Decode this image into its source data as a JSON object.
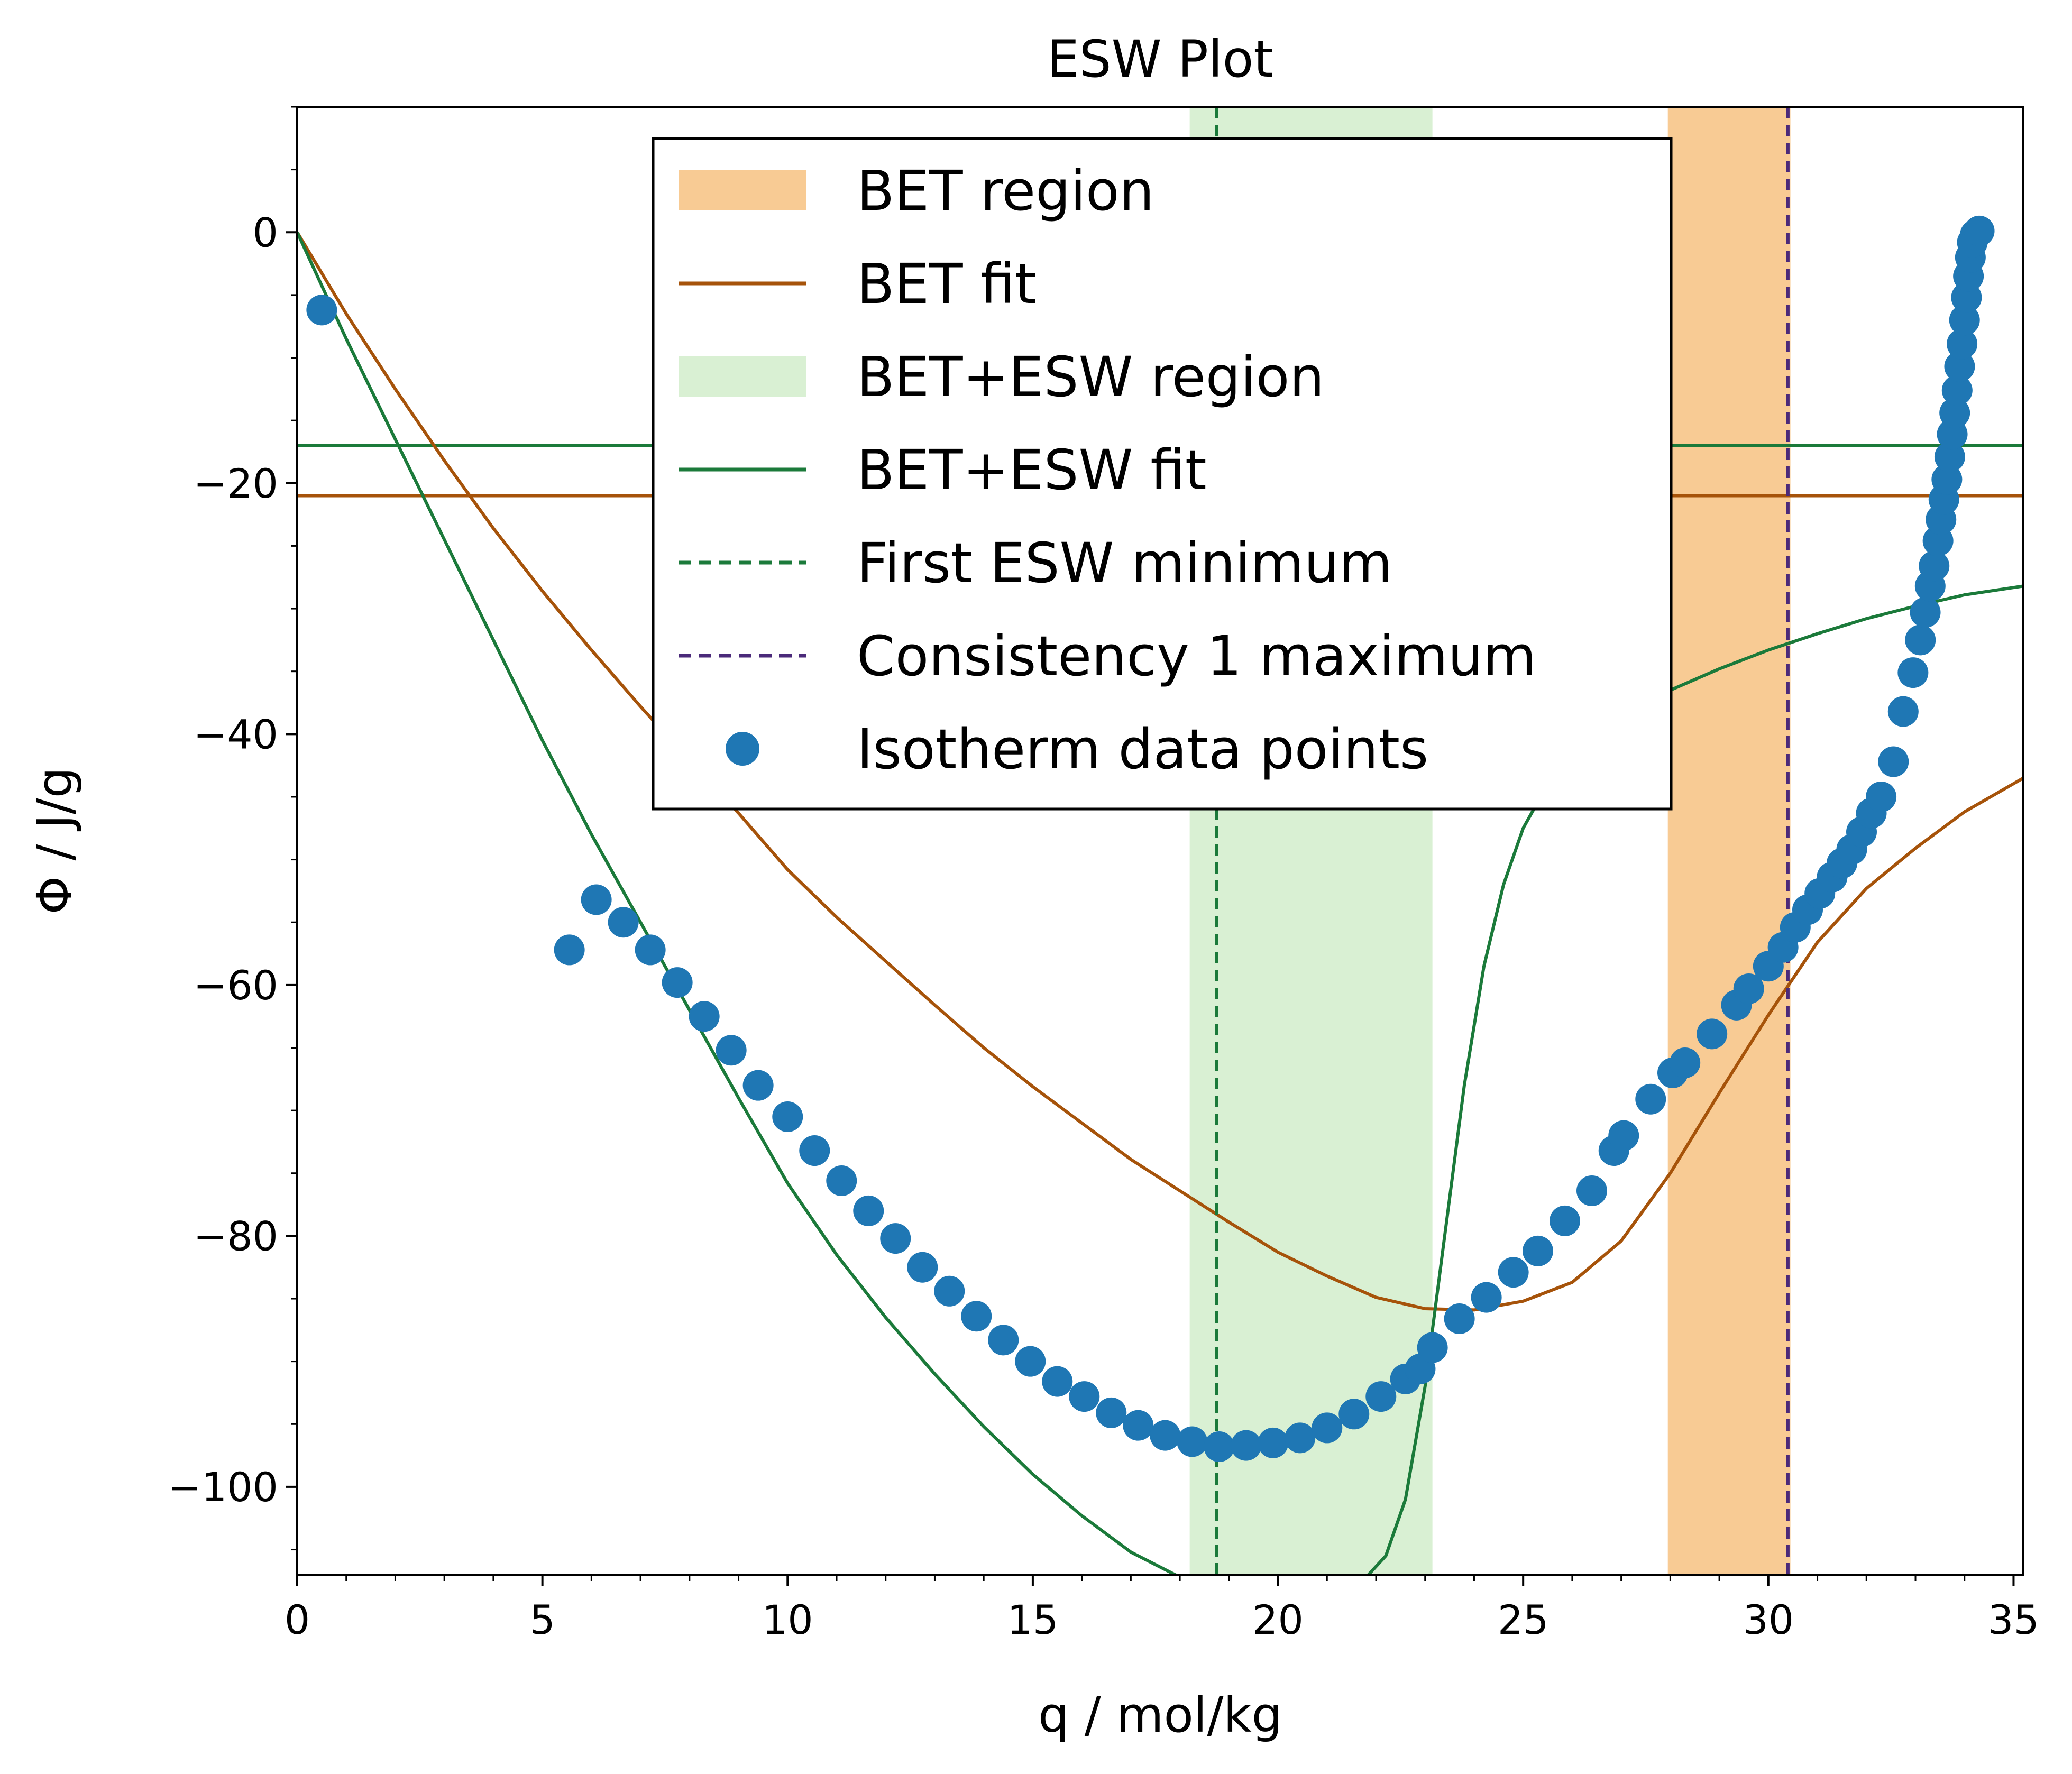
{
  "chart_data": {
    "type": "scatter",
    "title": "ESW Plot",
    "xlabel": "q / mol/kg",
    "ylabel": "Φ / J/g",
    "xlim": [
      0,
      35.2
    ],
    "ylim": [
      -107,
      10
    ],
    "xticks": [
      0,
      5,
      10,
      15,
      20,
      25,
      30,
      35
    ],
    "yticks": [
      0,
      -20,
      -40,
      -60,
      -80,
      -100
    ],
    "xtick_labels": [
      "0",
      "5",
      "10",
      "15",
      "20",
      "25",
      "30",
      "35"
    ],
    "ytick_labels": [
      "0",
      "−20",
      "−40",
      "−60",
      "−80",
      "−100"
    ],
    "grid": false,
    "legend_position": "top-center",
    "colors": {
      "bet_region": "#f8cb94",
      "bet_fit": "#a6530a",
      "esw_region": "#d9f0d3",
      "esw_fit": "#1b7a3a",
      "esw_min": "#1b7a3a",
      "cons_max": "#4b2a7a",
      "points": "#1f77b4"
    },
    "regions": [
      {
        "name": "BET region",
        "x_range": [
          27.95,
          30.45
        ],
        "color": "#f8cb94"
      },
      {
        "name": "BET+ESW region",
        "x_range": [
          18.2,
          23.15
        ],
        "color": "#d9f0d3"
      }
    ],
    "vlines": [
      {
        "name": "First ESW minimum",
        "x": 18.75,
        "color": "#1b7a3a",
        "style": "dashed"
      },
      {
        "name": "Consistency 1 maximum",
        "x": 30.4,
        "color": "#4b2a7a",
        "style": "dashed"
      }
    ],
    "hlines": [
      {
        "series": "BET+ESW fit",
        "y": -17,
        "color": "#1b7a3a"
      },
      {
        "series": "BET fit",
        "y": -21,
        "color": "#a6530a"
      }
    ],
    "series": [
      {
        "name": "BET fit",
        "kind": "line",
        "color": "#a6530a",
        "points": [
          [
            0,
            0
          ],
          [
            1,
            -6.5
          ],
          [
            2,
            -12.5
          ],
          [
            3,
            -18.2
          ],
          [
            4,
            -23.6
          ],
          [
            5,
            -28.6
          ],
          [
            6,
            -33.3
          ],
          [
            7,
            -37.8
          ],
          [
            8,
            -42.1
          ],
          [
            9,
            -46.3
          ],
          [
            10,
            -50.8
          ],
          [
            11,
            -54.6
          ],
          [
            12,
            -58.1
          ],
          [
            13,
            -61.6
          ],
          [
            14,
            -65.0
          ],
          [
            15,
            -68.1
          ],
          [
            16,
            -71.0
          ],
          [
            17,
            -73.9
          ],
          [
            18,
            -76.4
          ],
          [
            19,
            -78.9
          ],
          [
            20,
            -81.3
          ],
          [
            21,
            -83.2
          ],
          [
            22,
            -84.9
          ],
          [
            23,
            -85.8
          ],
          [
            24,
            -85.9
          ],
          [
            25,
            -85.2
          ],
          [
            26,
            -83.7
          ],
          [
            27,
            -80.4
          ],
          [
            28,
            -75.0
          ],
          [
            29,
            -68.6
          ],
          [
            30,
            -62.4
          ],
          [
            31,
            -56.6
          ],
          [
            32,
            -52.3
          ],
          [
            33,
            -49.1
          ],
          [
            34,
            -46.2
          ],
          [
            35.2,
            -43.5
          ]
        ]
      },
      {
        "name": "BET+ESW fit",
        "kind": "line",
        "color": "#1b7a3a",
        "points": [
          [
            0,
            0
          ],
          [
            1,
            -8.5
          ],
          [
            2,
            -16.5
          ],
          [
            3,
            -24.5
          ],
          [
            4,
            -32.5
          ],
          [
            5,
            -40.5
          ],
          [
            6,
            -48.0
          ],
          [
            7,
            -55.0
          ],
          [
            8,
            -62.0
          ],
          [
            9,
            -69.0
          ],
          [
            10,
            -75.8
          ],
          [
            11,
            -81.5
          ],
          [
            12,
            -86.5
          ],
          [
            13,
            -91.0
          ],
          [
            14,
            -95.2
          ],
          [
            15,
            -99.0
          ],
          [
            16,
            -102.3
          ],
          [
            17,
            -105.2
          ],
          [
            18,
            -107.2
          ],
          [
            21.8,
            -107.2
          ],
          [
            22.2,
            -105.5
          ],
          [
            22.6,
            -101.0
          ],
          [
            23.0,
            -92.0
          ],
          [
            23.4,
            -80.0
          ],
          [
            23.8,
            -68.0
          ],
          [
            24.2,
            -58.5
          ],
          [
            24.6,
            -52.0
          ],
          [
            25,
            -47.5
          ],
          [
            25.5,
            -44.0
          ],
          [
            26,
            -41.5
          ],
          [
            27,
            -38.5
          ],
          [
            28,
            -36.5
          ],
          [
            29,
            -34.8
          ],
          [
            30,
            -33.3
          ],
          [
            31,
            -32.0
          ],
          [
            32,
            -30.8
          ],
          [
            33,
            -29.8
          ],
          [
            34,
            -28.9
          ],
          [
            35.2,
            -28.2
          ]
        ]
      },
      {
        "name": "Isotherm data points",
        "kind": "scatter",
        "color": "#1f77b4",
        "points": [
          [
            0.5,
            -6.2
          ],
          [
            5.55,
            -57.2
          ],
          [
            6.1,
            -53.2
          ],
          [
            6.65,
            -55.0
          ],
          [
            7.2,
            -57.2
          ],
          [
            7.75,
            -59.8
          ],
          [
            8.3,
            -62.5
          ],
          [
            8.85,
            -65.2
          ],
          [
            9.4,
            -68.0
          ],
          [
            10.0,
            -70.5
          ],
          [
            10.55,
            -73.2
          ],
          [
            11.1,
            -75.6
          ],
          [
            11.65,
            -78.0
          ],
          [
            12.2,
            -80.2
          ],
          [
            12.75,
            -82.5
          ],
          [
            13.3,
            -84.4
          ],
          [
            13.85,
            -86.4
          ],
          [
            14.4,
            -88.3
          ],
          [
            14.95,
            -90.0
          ],
          [
            15.5,
            -91.6
          ],
          [
            16.05,
            -92.8
          ],
          [
            16.6,
            -94.1
          ],
          [
            17.15,
            -95.1
          ],
          [
            17.7,
            -95.9
          ],
          [
            18.25,
            -96.4
          ],
          [
            18.8,
            -96.8
          ],
          [
            19.35,
            -96.7
          ],
          [
            19.9,
            -96.5
          ],
          [
            20.45,
            -96.1
          ],
          [
            21.0,
            -95.3
          ],
          [
            21.55,
            -94.2
          ],
          [
            22.1,
            -92.8
          ],
          [
            22.6,
            -91.4
          ],
          [
            22.9,
            -90.6
          ],
          [
            23.15,
            -88.9
          ],
          [
            23.7,
            -86.6
          ],
          [
            24.25,
            -84.9
          ],
          [
            24.8,
            -82.9
          ],
          [
            25.3,
            -81.2
          ],
          [
            25.85,
            -78.8
          ],
          [
            26.4,
            -76.4
          ],
          [
            26.85,
            -73.2
          ],
          [
            27.05,
            -72.0
          ],
          [
            27.6,
            -69.1
          ],
          [
            28.05,
            -67.0
          ],
          [
            28.3,
            -66.2
          ],
          [
            28.85,
            -63.9
          ],
          [
            29.35,
            -61.6
          ],
          [
            29.6,
            -60.3
          ],
          [
            30.0,
            -58.5
          ],
          [
            30.3,
            -57.0
          ],
          [
            30.55,
            -55.4
          ],
          [
            30.8,
            -54.0
          ],
          [
            31.05,
            -52.7
          ],
          [
            31.3,
            -51.4
          ],
          [
            31.5,
            -50.3
          ],
          [
            31.7,
            -49.2
          ],
          [
            31.9,
            -47.8
          ],
          [
            32.1,
            -46.3
          ],
          [
            32.3,
            -45.0
          ],
          [
            32.55,
            -42.2
          ],
          [
            32.75,
            -38.2
          ],
          [
            32.95,
            -35.1
          ],
          [
            33.1,
            -32.5
          ],
          [
            33.2,
            -30.3
          ],
          [
            33.3,
            -28.2
          ],
          [
            33.38,
            -26.6
          ],
          [
            33.46,
            -24.6
          ],
          [
            33.52,
            -22.9
          ],
          [
            33.58,
            -21.3
          ],
          [
            33.64,
            -19.7
          ],
          [
            33.7,
            -17.9
          ],
          [
            33.75,
            -16.1
          ],
          [
            33.8,
            -14.4
          ],
          [
            33.85,
            -12.6
          ],
          [
            33.9,
            -10.7
          ],
          [
            33.95,
            -8.9
          ],
          [
            34.0,
            -7.0
          ],
          [
            34.04,
            -5.2
          ],
          [
            34.08,
            -3.5
          ],
          [
            34.12,
            -2.0
          ],
          [
            34.16,
            -0.8
          ],
          [
            34.22,
            -0.2
          ],
          [
            34.3,
            0.1
          ]
        ]
      }
    ],
    "legend": [
      {
        "label": "BET region",
        "marker": "patch",
        "color": "#f8cb94"
      },
      {
        "label": "BET fit",
        "marker": "line",
        "color": "#a6530a"
      },
      {
        "label": "BET+ESW region",
        "marker": "patch",
        "color": "#d9f0d3"
      },
      {
        "label": "BET+ESW fit",
        "marker": "line",
        "color": "#1b7a3a"
      },
      {
        "label": "First ESW minimum",
        "marker": "dashed",
        "color": "#1b7a3a"
      },
      {
        "label": "Consistency 1 maximum",
        "marker": "dashed",
        "color": "#4b2a7a"
      },
      {
        "label": "Isotherm data points",
        "marker": "dot",
        "color": "#1f77b4"
      }
    ]
  }
}
